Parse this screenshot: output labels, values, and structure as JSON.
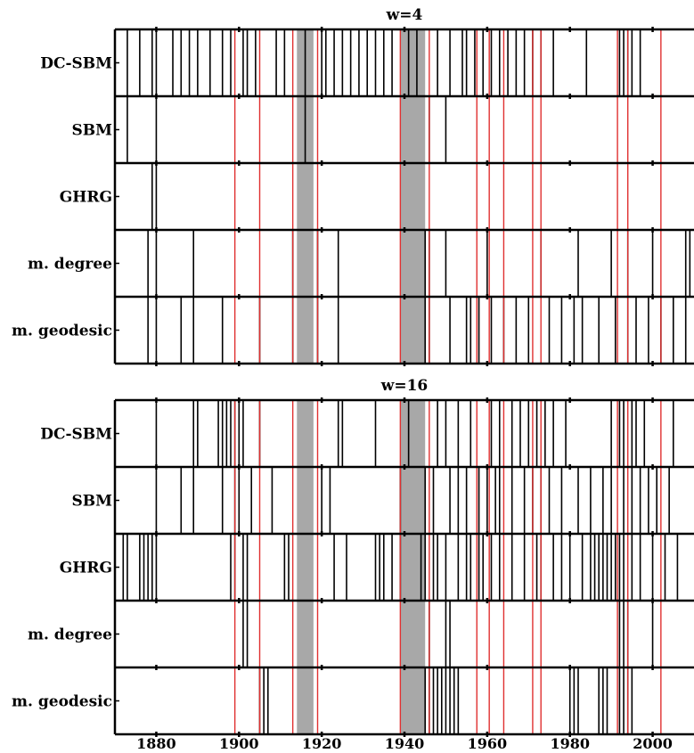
{
  "chart_data": [
    {
      "type": "event-raster",
      "title": "w=4",
      "xlim": [
        1870,
        2010
      ],
      "x_ticks": [
        1880,
        1900,
        1920,
        1940,
        1960,
        1980,
        2000
      ],
      "shaded_periods": [
        [
          1914,
          1918
        ],
        [
          1939,
          1945
        ]
      ],
      "reference_events": [
        1899,
        1905,
        1913,
        1919,
        1939,
        1946,
        1957.5,
        1960.5,
        1964,
        1971,
        1973,
        1991.5,
        1994,
        2002
      ],
      "rows": [
        {
          "label": "DC-SBM",
          "events": [
            1873,
            1876,
            1879,
            1880,
            1884,
            1886,
            1888,
            1890,
            1893,
            1896,
            1898,
            1901,
            1902,
            1904,
            1909,
            1911,
            1916,
            1920,
            1921,
            1923,
            1925,
            1927,
            1929,
            1931,
            1933,
            1935,
            1937,
            1941,
            1943,
            1948,
            1951,
            1954,
            1955,
            1957,
            1959,
            1961,
            1963,
            1965,
            1967,
            1969,
            1971,
            1973,
            1976,
            1984,
            1992,
            1993,
            1994,
            1995,
            1997
          ]
        },
        {
          "label": "SBM",
          "events": [
            1873,
            1880,
            1916,
            1946,
            1950
          ]
        },
        {
          "label": "GHRG",
          "events": [
            1879,
            1880
          ]
        },
        {
          "label": "m. degree",
          "events": [
            1878,
            1880,
            1889,
            1913,
            1919,
            1924,
            1945,
            1946,
            1950,
            1960,
            1973,
            1982,
            1990,
            1994,
            2000,
            2008,
            2009
          ]
        },
        {
          "label": "m. geodesic",
          "events": [
            1878,
            1880,
            1886,
            1889,
            1896,
            1905,
            1913,
            1919,
            1924,
            1945,
            1946,
            1951,
            1955,
            1956,
            1958,
            1961,
            1964,
            1967,
            1970,
            1975,
            1978,
            1981,
            1983,
            1987,
            1991,
            1994,
            1996,
            1999,
            2002,
            2005,
            2008
          ]
        }
      ]
    },
    {
      "type": "event-raster",
      "title": "w=16",
      "xlim": [
        1870,
        2010
      ],
      "x_ticks": [
        1880,
        1900,
        1920,
        1940,
        1960,
        1980,
        2000
      ],
      "shaded_periods": [
        [
          1914,
          1918
        ],
        [
          1939,
          1945
        ]
      ],
      "reference_events": [
        1899,
        1905,
        1913,
        1919,
        1939,
        1946,
        1957.5,
        1960.5,
        1964,
        1971,
        1973,
        1991.5,
        1994,
        2002
      ],
      "rows": [
        {
          "label": "DC-SBM",
          "events": [
            1880,
            1889,
            1890,
            1895,
            1896,
            1897,
            1898,
            1899,
            1900,
            1901,
            1905,
            1924,
            1925,
            1933,
            1941,
            1948,
            1950,
            1953,
            1956,
            1961,
            1963,
            1966,
            1968,
            1970,
            1972,
            1974,
            1976,
            1979,
            1990,
            1992,
            1993,
            1995,
            1996,
            1998,
            2005
          ]
        },
        {
          "label": "SBM",
          "events": [
            1880,
            1886,
            1889,
            1896,
            1899,
            1900,
            1903,
            1908,
            1920,
            1922,
            1939,
            1945,
            1947,
            1951,
            1953,
            1955,
            1958,
            1960,
            1962,
            1963,
            1966,
            1969,
            1971,
            1973,
            1975,
            1978,
            1982,
            1985,
            1988,
            1990,
            1993,
            1995,
            1997,
            1999,
            2001,
            2004
          ]
        },
        {
          "label": "GHRG",
          "events": [
            1872,
            1873,
            1876,
            1877,
            1878,
            1879,
            1880,
            1898,
            1899,
            1901,
            1902,
            1911,
            1912,
            1923,
            1926,
            1933,
            1934,
            1935,
            1937,
            1939,
            1944,
            1945,
            1947,
            1948,
            1950,
            1953,
            1955,
            1956,
            1958,
            1959,
            1961,
            1963,
            1966,
            1969,
            1972,
            1973,
            1976,
            1978,
            1980,
            1983,
            1985,
            1986,
            1987,
            1988,
            1989,
            1990,
            1991,
            1992,
            1993,
            1995,
            1997,
            2000,
            2003,
            2006
          ]
        },
        {
          "label": "m. degree",
          "events": [
            1901,
            1902,
            1946,
            1950,
            1951,
            1992,
            1993,
            1994,
            2000
          ]
        },
        {
          "label": "m. geodesic",
          "events": [
            1905,
            1906,
            1907,
            1945,
            1946,
            1947,
            1948,
            1949,
            1950,
            1951,
            1952,
            1953,
            1980,
            1981,
            1982,
            1987,
            1988,
            1989,
            1992,
            1993,
            1994,
            1995
          ]
        }
      ]
    }
  ]
}
